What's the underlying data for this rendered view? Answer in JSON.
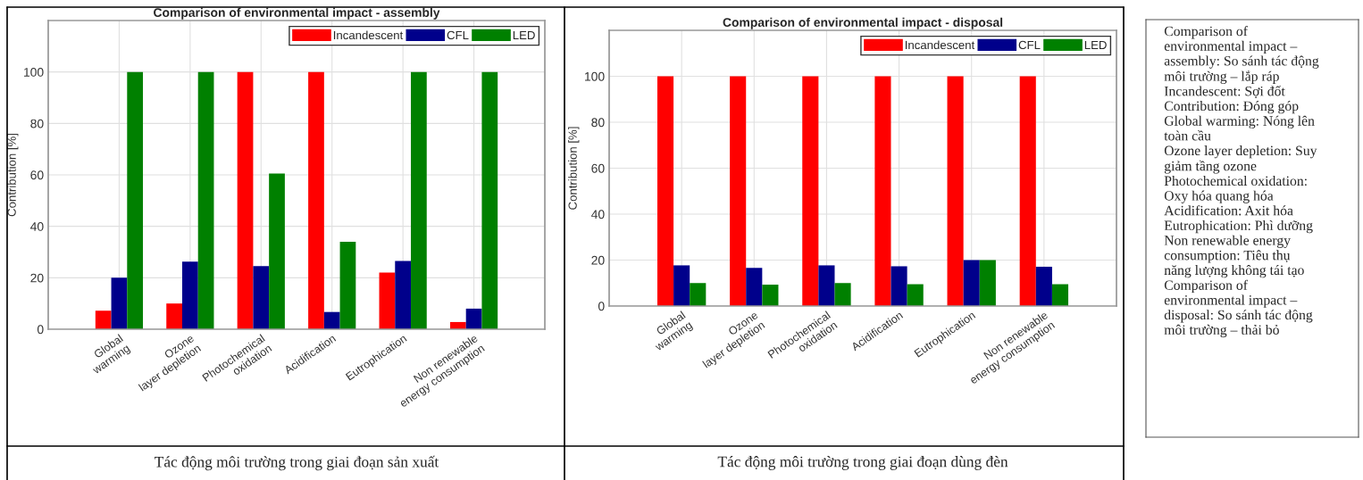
{
  "chart_data": [
    {
      "type": "bar",
      "title": "Comparison of environmental impact - assembly",
      "ylabel": "Contribution [%]",
      "categories": [
        "Global\nwarming",
        "Ozone\nlayer depletion",
        "Photochemical\noxidation",
        "Acidification",
        "Eutrophication",
        "Non renewable\nenergy consumption"
      ],
      "series": [
        {
          "name": "Incandescent",
          "color": "#ff0000",
          "values": [
            7.2,
            10,
            100,
            100,
            22,
            2.8
          ]
        },
        {
          "name": "CFL",
          "color": "#00008b",
          "values": [
            20,
            26.3,
            24.5,
            6.7,
            26.5,
            8
          ]
        },
        {
          "name": "LED",
          "color": "#008000",
          "values": [
            100,
            100,
            60.5,
            34,
            100,
            100
          ]
        }
      ],
      "ylim": [
        0,
        120
      ],
      "yticks": [
        0,
        20,
        40,
        60,
        80,
        100
      ],
      "grid": true,
      "legend": "top right",
      "annotations": [
        "Tác động môi trường trong giai đoạn sản xuất"
      ]
    },
    {
      "type": "bar",
      "title": "Comparison of environmental impact - disposal",
      "ylabel": "Contribution [%]",
      "categories": [
        "Global\nwarming",
        "Ozone\nlayer depletion",
        "Photochemical\noxidation",
        "Acidification",
        "Eutrophication",
        "Non renewable\nenergy consumption"
      ],
      "series": [
        {
          "name": "Incandescent",
          "color": "#ff0000",
          "values": [
            100,
            100,
            100,
            100,
            100,
            100
          ]
        },
        {
          "name": "CFL",
          "color": "#00008b",
          "values": [
            17.7,
            16.6,
            17.7,
            17.3,
            20,
            17.1
          ]
        },
        {
          "name": "LED",
          "color": "#008000",
          "values": [
            10,
            9.3,
            10,
            9.5,
            20,
            9.5
          ]
        }
      ],
      "ylim": [
        0,
        120
      ],
      "yticks": [
        0,
        20,
        40,
        60,
        80,
        100
      ],
      "grid": true,
      "legend": "top right",
      "annotations": [
        "Tác động môi trường trong giai đoạn dùng đèn"
      ]
    },
    {
      "type": "other",
      "annotations": [
        "Comparison of",
        "environmental impact –",
        "assembly: So sánh tác động",
        "môi trường – lắp ráp",
        "Incandescent: Sợi đốt",
        "Contribution: Đóng góp",
        "Global warming: Nóng lên",
        "toàn cầu",
        "Ozone layer depletion: Suy",
        "giảm tầng ozone",
        "Photochemical oxidation:",
        "Oxy hóa quang hóa",
        "Acidification: Axit hóa",
        "Eutrophication: Phì dưỡng",
        "Non renewable energy",
        "consumption: Tiêu thụ",
        "năng lượng không tái tạo",
        "Comparison of",
        "environmental impact –",
        "disposal: So sánh tác động",
        "môi trường – thải bỏ"
      ]
    }
  ]
}
